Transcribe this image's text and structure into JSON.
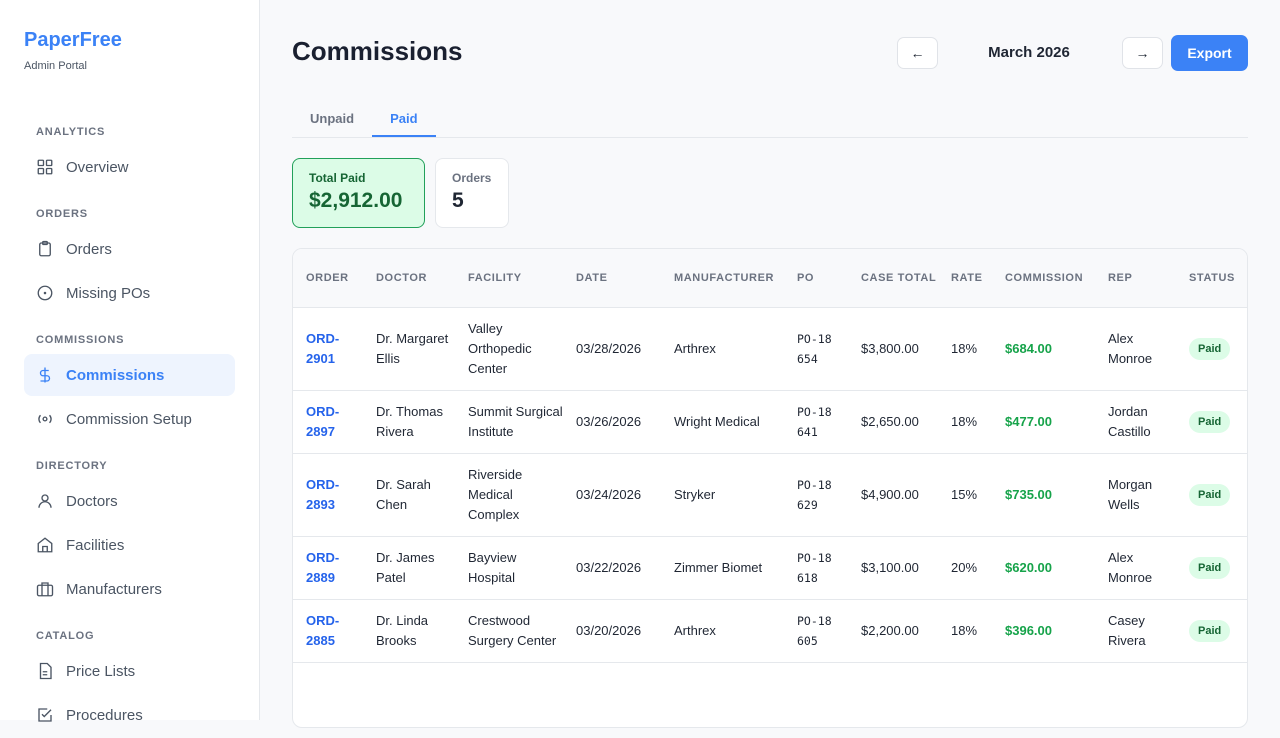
{
  "brand": {
    "name": "PaperFree",
    "subtitle": "Admin Portal"
  },
  "sidebar": {
    "sections": [
      {
        "label": "ANALYTICS",
        "items": [
          {
            "label": "Overview",
            "icon": "grid-icon"
          }
        ]
      },
      {
        "label": "ORDERS",
        "items": [
          {
            "label": "Orders",
            "icon": "clipboard-icon"
          },
          {
            "label": "Missing POs",
            "icon": "alert-circle-icon"
          }
        ]
      },
      {
        "label": "COMMISSIONS",
        "items": [
          {
            "label": "Commissions",
            "icon": "dollar-icon",
            "active": true
          },
          {
            "label": "Commission Setup",
            "icon": "radio-icon"
          }
        ]
      },
      {
        "label": "DIRECTORY",
        "items": [
          {
            "label": "Doctors",
            "icon": "user-icon"
          },
          {
            "label": "Facilities",
            "icon": "home-icon"
          },
          {
            "label": "Manufacturers",
            "icon": "briefcase-icon"
          }
        ]
      },
      {
        "label": "CATALOG",
        "items": [
          {
            "label": "Price Lists",
            "icon": "file-icon"
          },
          {
            "label": "Procedures",
            "icon": "check-square-icon"
          }
        ]
      }
    ]
  },
  "header": {
    "title": "Commissions",
    "prev": "←",
    "month": "March 2026",
    "next": "→",
    "export": "Export"
  },
  "tabs": [
    {
      "label": "Unpaid"
    },
    {
      "label": "Paid",
      "active": true
    }
  ],
  "summary": {
    "total_label": "Total Paid",
    "total_value": "$2,912.00",
    "orders_label": "Orders",
    "orders_value": "5"
  },
  "table": {
    "columns": [
      "ORDER",
      "DOCTOR",
      "FACILITY",
      "DATE",
      "MANUFACTURER",
      "PO",
      "CASE TOTAL",
      "RATE",
      "COMMISSION",
      "REP",
      "STATUS"
    ],
    "rows": [
      [
        "ORD-2901",
        "Dr. Margaret Ellis",
        "Valley Orthopedic Center",
        "03/28/2026",
        "Arthrex",
        "PO-18654",
        "$3,800.00",
        "18%",
        "$684.00",
        "Alex Monroe",
        "Paid"
      ],
      [
        "ORD-2897",
        "Dr. Thomas Rivera",
        "Summit Surgical Institute",
        "03/26/2026",
        "Wright Medical",
        "PO-18641",
        "$2,650.00",
        "18%",
        "$477.00",
        "Jordan Castillo",
        "Paid"
      ],
      [
        "ORD-2893",
        "Dr. Sarah Chen",
        "Riverside Medical Complex",
        "03/24/2026",
        "Stryker",
        "PO-18629",
        "$4,900.00",
        "15%",
        "$735.00",
        "Morgan Wells",
        "Paid"
      ],
      [
        "ORD-2889",
        "Dr. James Patel",
        "Bayview Hospital",
        "03/22/2026",
        "Zimmer Biomet",
        "PO-18618",
        "$3,100.00",
        "20%",
        "$620.00",
        "Alex Monroe",
        "Paid"
      ],
      [
        "ORD-2885",
        "Dr. Linda Brooks",
        "Crestwood Surgery Center",
        "03/20/2026",
        "Arthrex",
        "PO-18605",
        "$2,200.00",
        "18%",
        "$396.00",
        "Casey Rivera",
        "Paid"
      ]
    ]
  }
}
